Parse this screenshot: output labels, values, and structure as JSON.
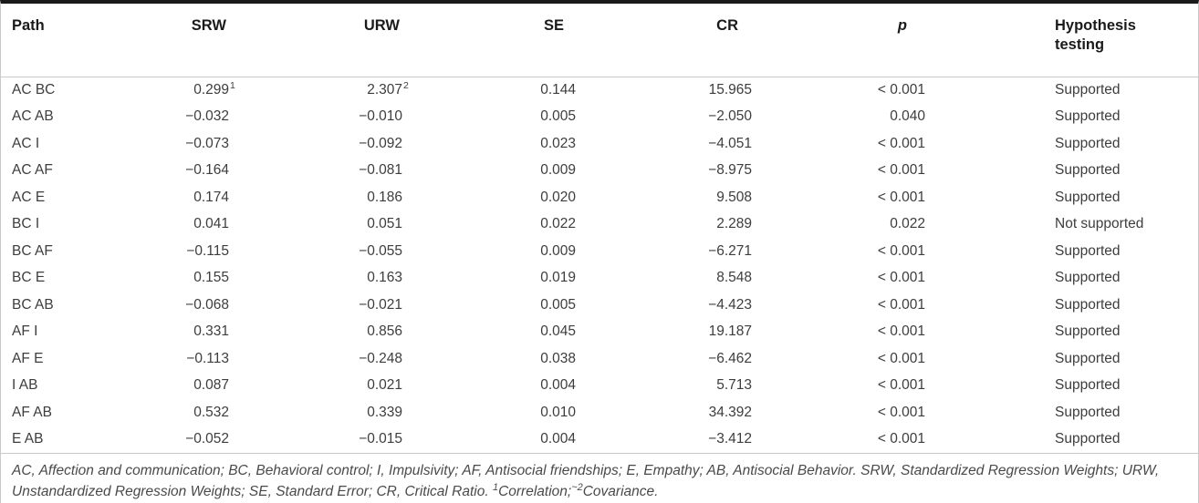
{
  "colors": {
    "background": "#ffffff",
    "top_border": "#1a1a1a",
    "rule": "#c9c9c9",
    "header_text": "#1a1a1a",
    "body_text": "#3d3d3d",
    "footnote_text": "#4a4a4a"
  },
  "table": {
    "columns": [
      {
        "key": "path",
        "label": "Path"
      },
      {
        "key": "srw",
        "label": "SRW"
      },
      {
        "key": "urw",
        "label": "URW"
      },
      {
        "key": "se",
        "label": "SE"
      },
      {
        "key": "cr",
        "label": "CR"
      },
      {
        "key": "p",
        "label": "p"
      },
      {
        "key": "hypothesis",
        "label": "Hypothesis testing"
      }
    ],
    "rows": [
      {
        "path": "AC BC",
        "srw": "0.299",
        "srw_sup": "1",
        "urw": "2.307",
        "urw_sup": "2",
        "se": "0.144",
        "cr": "15.965",
        "p": "< 0.001",
        "hypothesis": "Supported"
      },
      {
        "path": "AC AB",
        "srw": "−0.032",
        "urw": "−0.010",
        "se": "0.005",
        "cr": "−2.050",
        "p": "0.040",
        "hypothesis": "Supported"
      },
      {
        "path": "AC I",
        "srw": "−0.073",
        "urw": "−0.092",
        "se": "0.023",
        "cr": "−4.051",
        "p": "< 0.001",
        "hypothesis": "Supported"
      },
      {
        "path": "AC AF",
        "srw": "−0.164",
        "urw": "−0.081",
        "se": "0.009",
        "cr": "−8.975",
        "p": "< 0.001",
        "hypothesis": "Supported"
      },
      {
        "path": "AC E",
        "srw": "0.174",
        "urw": "0.186",
        "se": "0.020",
        "cr": "9.508",
        "p": "< 0.001",
        "hypothesis": "Supported"
      },
      {
        "path": "BC I",
        "srw": "0.041",
        "urw": "0.051",
        "se": "0.022",
        "cr": "2.289",
        "p": "0.022",
        "hypothesis": "Not supported"
      },
      {
        "path": "BC AF",
        "srw": "−0.115",
        "urw": "−0.055",
        "se": "0.009",
        "cr": "−6.271",
        "p": "< 0.001",
        "hypothesis": "Supported"
      },
      {
        "path": "BC E",
        "srw": "0.155",
        "urw": "0.163",
        "se": "0.019",
        "cr": "8.548",
        "p": "< 0.001",
        "hypothesis": "Supported"
      },
      {
        "path": "BC AB",
        "srw": "−0.068",
        "urw": "−0.021",
        "se": "0.005",
        "cr": "−4.423",
        "p": "< 0.001",
        "hypothesis": "Supported"
      },
      {
        "path": "AF I",
        "srw": "0.331",
        "urw": "0.856",
        "se": "0.045",
        "cr": "19.187",
        "p": "< 0.001",
        "hypothesis": "Supported"
      },
      {
        "path": "AF E",
        "srw": "−0.113",
        "urw": "−0.248",
        "se": "0.038",
        "cr": "−6.462",
        "p": "< 0.001",
        "hypothesis": "Supported"
      },
      {
        "path": "I AB",
        "srw": "0.087",
        "urw": "0.021",
        "se": "0.004",
        "cr": "5.713",
        "p": "< 0.001",
        "hypothesis": "Supported"
      },
      {
        "path": "AF AB",
        "srw": "0.532",
        "urw": "0.339",
        "se": "0.010",
        "cr": "34.392",
        "p": "< 0.001",
        "hypothesis": "Supported"
      },
      {
        "path": "E AB",
        "srw": "−0.052",
        "urw": "−0.015",
        "se": "0.004",
        "cr": "−3.412",
        "p": "< 0.001",
        "hypothesis": "Supported"
      }
    ]
  },
  "footnote": {
    "segments": [
      {
        "text": "AC, Affection and communication; BC, Behavioral control; I, Impulsivity; AF, Antisocial friendships; E, Empathy; AB, Antisocial Behavior. SRW, Standardized Regression Weights; URW, Unstandardized Regression Weights; SE, Standard Error; CR, Critical Ratio. "
      },
      {
        "sup": "1"
      },
      {
        "text": "Correlation;"
      },
      {
        "sup": "~2"
      },
      {
        "text": "Covariance."
      }
    ]
  }
}
